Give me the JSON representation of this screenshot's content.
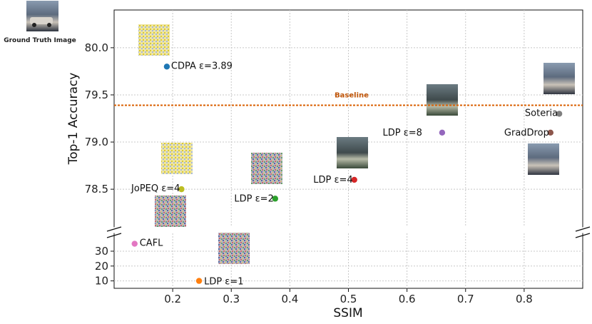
{
  "chart_data": {
    "type": "scatter",
    "xlabel": "SSIM",
    "ylabel": "Top-1 Accuracy",
    "xlim": [
      0.1,
      0.9
    ],
    "x_ticks": [
      "0.2",
      "0.3",
      "0.4",
      "0.5",
      "0.6",
      "0.7",
      "0.8"
    ],
    "upper_panel": {
      "ylim": [
        78.1,
        80.4
      ],
      "y_ticks": [
        "78.5",
        "79.0",
        "79.5",
        "80.0"
      ]
    },
    "lower_panel": {
      "ylim": [
        5,
        42
      ],
      "y_ticks": [
        "10",
        "20",
        "30"
      ]
    },
    "baseline": {
      "label": "Baseline",
      "y": 79.39,
      "color": "#d95f02"
    },
    "ground_truth_label": "Ground Truth Image",
    "points": [
      {
        "label": "CDPA ε=3.89",
        "x": 0.19,
        "y": 79.8,
        "panel": "upper",
        "color": "#1f77b4"
      },
      {
        "label": "Soteria",
        "x": 0.86,
        "y": 79.3,
        "panel": "upper",
        "color": "#7f7f7f"
      },
      {
        "label": "GradDrop",
        "x": 0.845,
        "y": 79.1,
        "panel": "upper",
        "color": "#8c564b"
      },
      {
        "label": "LDP ε=8",
        "x": 0.66,
        "y": 79.1,
        "panel": "upper",
        "color": "#9467bd"
      },
      {
        "label": "LDP ε=4",
        "x": 0.51,
        "y": 78.6,
        "panel": "upper",
        "color": "#d62728"
      },
      {
        "label": "LDP ε=2",
        "x": 0.375,
        "y": 78.4,
        "panel": "upper",
        "color": "#2ca02c"
      },
      {
        "label": "JoPEQ ε=4",
        "x": 0.215,
        "y": 78.5,
        "panel": "upper",
        "color": "#bcbd22"
      },
      {
        "label": "CAFL",
        "x": 0.135,
        "y": 35,
        "panel": "lower",
        "color": "#e377c2"
      },
      {
        "label": "LDP ε=1",
        "x": 0.245,
        "y": 10,
        "panel": "lower",
        "color": "#ff7f0e"
      }
    ]
  }
}
